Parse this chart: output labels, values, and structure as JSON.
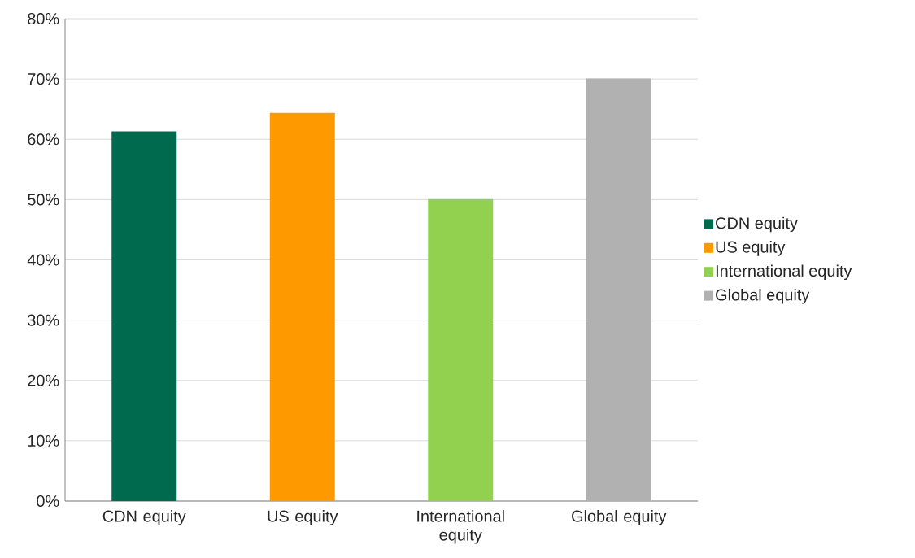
{
  "chart_data": {
    "type": "bar",
    "categories": [
      "CDN equity",
      "US equity",
      "International equity",
      "Global equity"
    ],
    "series": [
      {
        "name": "CDN equity",
        "color": "#006a4e",
        "values": [
          61.3,
          null,
          null,
          null
        ]
      },
      {
        "name": "US equity",
        "color": "#ff9900",
        "values": [
          null,
          64.4,
          null,
          null
        ]
      },
      {
        "name": "International equity",
        "color": "#92d050",
        "values": [
          null,
          null,
          50.1,
          null
        ]
      },
      {
        "name": "Global equity",
        "color": "#b1b1b1",
        "values": [
          null,
          null,
          null,
          70.1
        ]
      }
    ],
    "ylim": [
      0,
      80
    ],
    "yticks": [
      {
        "value": 0,
        "label": "0%"
      },
      {
        "value": 10,
        "label": "10%"
      },
      {
        "value": 20,
        "label": "20%"
      },
      {
        "value": 30,
        "label": "30%"
      },
      {
        "value": 40,
        "label": "40%"
      },
      {
        "value": 50,
        "label": "50%"
      },
      {
        "value": 60,
        "label": "60%"
      },
      {
        "value": 70,
        "label": "70%"
      },
      {
        "value": 80,
        "label": "80%"
      }
    ],
    "grid": "y",
    "legend": "right"
  }
}
